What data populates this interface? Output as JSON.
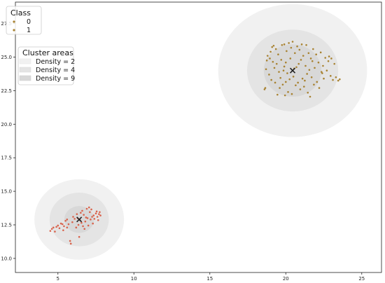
{
  "chart_data": {
    "type": "scatter",
    "title": "",
    "xlabel": "",
    "ylabel": "",
    "xlim": [
      2.2,
      26.3
    ],
    "ylim": [
      8.95,
      29.1
    ],
    "xticks": [
      5,
      10,
      15,
      20,
      25
    ],
    "yticks": [
      10.0,
      12.5,
      15.0,
      17.5,
      20.0,
      22.5,
      25.0,
      27.5
    ],
    "grid": false,
    "colors": {
      "class_0": "#d9634c",
      "class_1": "#a88231",
      "centroid": "#222222",
      "density_2": "#f1f1f1",
      "density_4": "#e4e4e4",
      "density_9": "#d8d8d8"
    },
    "legends": [
      {
        "title": "Class",
        "placement": "top-left",
        "entries": [
          "0",
          "1"
        ]
      },
      {
        "title": "Cluster areas",
        "placement": "upper-left",
        "entries": [
          "Density = 2",
          "Density = 4",
          "Density = 9"
        ]
      }
    ],
    "clusters": [
      {
        "class": "0",
        "center": [
          6.4,
          12.9
        ],
        "areas": [
          {
            "density": 2,
            "rx": 2.95,
            "ry": 3.0
          },
          {
            "density": 4,
            "rx": 1.95,
            "ry": 2.0
          },
          {
            "density": 9,
            "rx": 0.98,
            "ry": 1.0
          }
        ]
      },
      {
        "class": "1",
        "center": [
          20.45,
          24.0
        ],
        "areas": [
          {
            "density": 2,
            "rx": 4.9,
            "ry": 4.95
          },
          {
            "density": 4,
            "rx": 3.0,
            "ry": 3.05
          },
          {
            "density": 9,
            "rx": 1.9,
            "ry": 1.95
          }
        ]
      }
    ],
    "series": [
      {
        "name": "0",
        "points": [
          [
            4.5,
            12.05
          ],
          [
            4.6,
            12.2
          ],
          [
            4.7,
            12.3
          ],
          [
            4.8,
            12.0
          ],
          [
            4.9,
            12.35
          ],
          [
            5.0,
            12.45
          ],
          [
            5.1,
            12.25
          ],
          [
            5.2,
            12.6
          ],
          [
            5.3,
            12.55
          ],
          [
            5.4,
            12.4
          ],
          [
            5.5,
            12.8
          ],
          [
            5.6,
            12.9
          ],
          [
            5.7,
            12.55
          ],
          [
            5.8,
            11.3
          ],
          [
            5.85,
            11.1
          ],
          [
            5.95,
            12.7
          ],
          [
            6.0,
            13.1
          ],
          [
            6.1,
            12.95
          ],
          [
            6.2,
            12.3
          ],
          [
            6.25,
            13.3
          ],
          [
            6.35,
            12.5
          ],
          [
            6.4,
            11.6
          ],
          [
            6.5,
            13.4
          ],
          [
            6.55,
            12.65
          ],
          [
            6.6,
            13.55
          ],
          [
            6.7,
            13.25
          ],
          [
            6.75,
            12.2
          ],
          [
            6.8,
            12.75
          ],
          [
            6.9,
            13.7
          ],
          [
            6.95,
            13.0
          ],
          [
            7.0,
            12.45
          ],
          [
            7.05,
            13.8
          ],
          [
            7.1,
            13.45
          ],
          [
            7.15,
            12.9
          ],
          [
            7.2,
            13.65
          ],
          [
            7.3,
            12.6
          ],
          [
            7.35,
            13.2
          ],
          [
            7.4,
            12.95
          ],
          [
            7.5,
            13.35
          ],
          [
            7.55,
            13.5
          ],
          [
            7.6,
            13.1
          ],
          [
            7.65,
            12.85
          ],
          [
            7.7,
            13.3
          ],
          [
            7.75,
            13.45
          ],
          [
            7.8,
            13.2
          ],
          [
            5.35,
            12.1
          ],
          [
            5.6,
            12.3
          ],
          [
            6.3,
            13.0
          ],
          [
            6.45,
            12.85
          ],
          [
            6.65,
            12.4
          ],
          [
            6.85,
            13.05
          ],
          [
            7.25,
            13.1
          ]
        ]
      },
      {
        "name": "1",
        "points": [
          [
            18.6,
            22.6
          ],
          [
            18.65,
            22.7
          ],
          [
            18.7,
            24.1
          ],
          [
            18.75,
            24.75
          ],
          [
            18.8,
            25.1
          ],
          [
            18.9,
            23.7
          ],
          [
            18.95,
            24.9
          ],
          [
            19.0,
            25.4
          ],
          [
            19.05,
            23.3
          ],
          [
            19.1,
            25.75
          ],
          [
            19.2,
            25.85
          ],
          [
            19.25,
            24.2
          ],
          [
            19.3,
            23.1
          ],
          [
            19.35,
            25.6
          ],
          [
            19.4,
            24.5
          ],
          [
            19.45,
            22.2
          ],
          [
            19.5,
            25.2
          ],
          [
            19.55,
            23.9
          ],
          [
            19.6,
            22.7
          ],
          [
            19.7,
            24.8
          ],
          [
            19.75,
            25.9
          ],
          [
            19.8,
            22.95
          ],
          [
            19.85,
            24.0
          ],
          [
            19.9,
            25.95
          ],
          [
            19.95,
            22.15
          ],
          [
            20.0,
            24.6
          ],
          [
            20.05,
            25.45
          ],
          [
            20.1,
            23.8
          ],
          [
            20.15,
            22.4
          ],
          [
            20.2,
            26.05
          ],
          [
            20.25,
            23.35
          ],
          [
            20.3,
            24.9
          ],
          [
            20.35,
            25.7
          ],
          [
            20.4,
            22.25
          ],
          [
            20.45,
            26.15
          ],
          [
            20.5,
            23.55
          ],
          [
            20.6,
            25.3
          ],
          [
            20.65,
            22.9
          ],
          [
            20.7,
            24.25
          ],
          [
            20.75,
            25.8
          ],
          [
            20.8,
            23.1
          ],
          [
            20.85,
            24.5
          ],
          [
            20.9,
            25.55
          ],
          [
            20.95,
            22.6
          ],
          [
            21.0,
            24.8
          ],
          [
            21.1,
            23.4
          ],
          [
            21.15,
            25.1
          ],
          [
            21.2,
            22.8
          ],
          [
            21.3,
            24.35
          ],
          [
            21.35,
            25.9
          ],
          [
            21.4,
            23.75
          ],
          [
            21.45,
            22.35
          ],
          [
            21.5,
            25.3
          ],
          [
            21.55,
            24.05
          ],
          [
            21.6,
            22.05
          ],
          [
            21.7,
            23.5
          ],
          [
            21.75,
            24.7
          ],
          [
            21.8,
            25.6
          ],
          [
            21.85,
            22.95
          ],
          [
            21.9,
            24.2
          ],
          [
            22.0,
            25.2
          ],
          [
            22.05,
            23.15
          ],
          [
            22.15,
            24.6
          ],
          [
            22.2,
            22.7
          ],
          [
            22.3,
            25.35
          ],
          [
            22.35,
            23.9
          ],
          [
            22.45,
            24.35
          ],
          [
            22.5,
            23.4
          ],
          [
            22.6,
            24.95
          ],
          [
            22.7,
            24.0
          ],
          [
            22.8,
            24.7
          ],
          [
            22.85,
            25.05
          ],
          [
            22.95,
            23.6
          ],
          [
            23.0,
            24.9
          ],
          [
            23.1,
            23.3
          ],
          [
            23.2,
            24.5
          ],
          [
            23.3,
            23.5
          ],
          [
            23.45,
            23.25
          ],
          [
            23.55,
            23.35
          ],
          [
            19.15,
            24.65
          ],
          [
            19.65,
            23.45
          ],
          [
            20.55,
            24.15
          ],
          [
            21.25,
            23.25
          ],
          [
            21.65,
            24.9
          ],
          [
            22.4,
            23.8
          ],
          [
            20.0,
            23.15
          ],
          [
            19.9,
            24.3
          ],
          [
            21.05,
            25.95
          ]
        ]
      }
    ],
    "centroids": [
      [
        6.4,
        12.9
      ],
      [
        20.45,
        24.0
      ]
    ]
  }
}
